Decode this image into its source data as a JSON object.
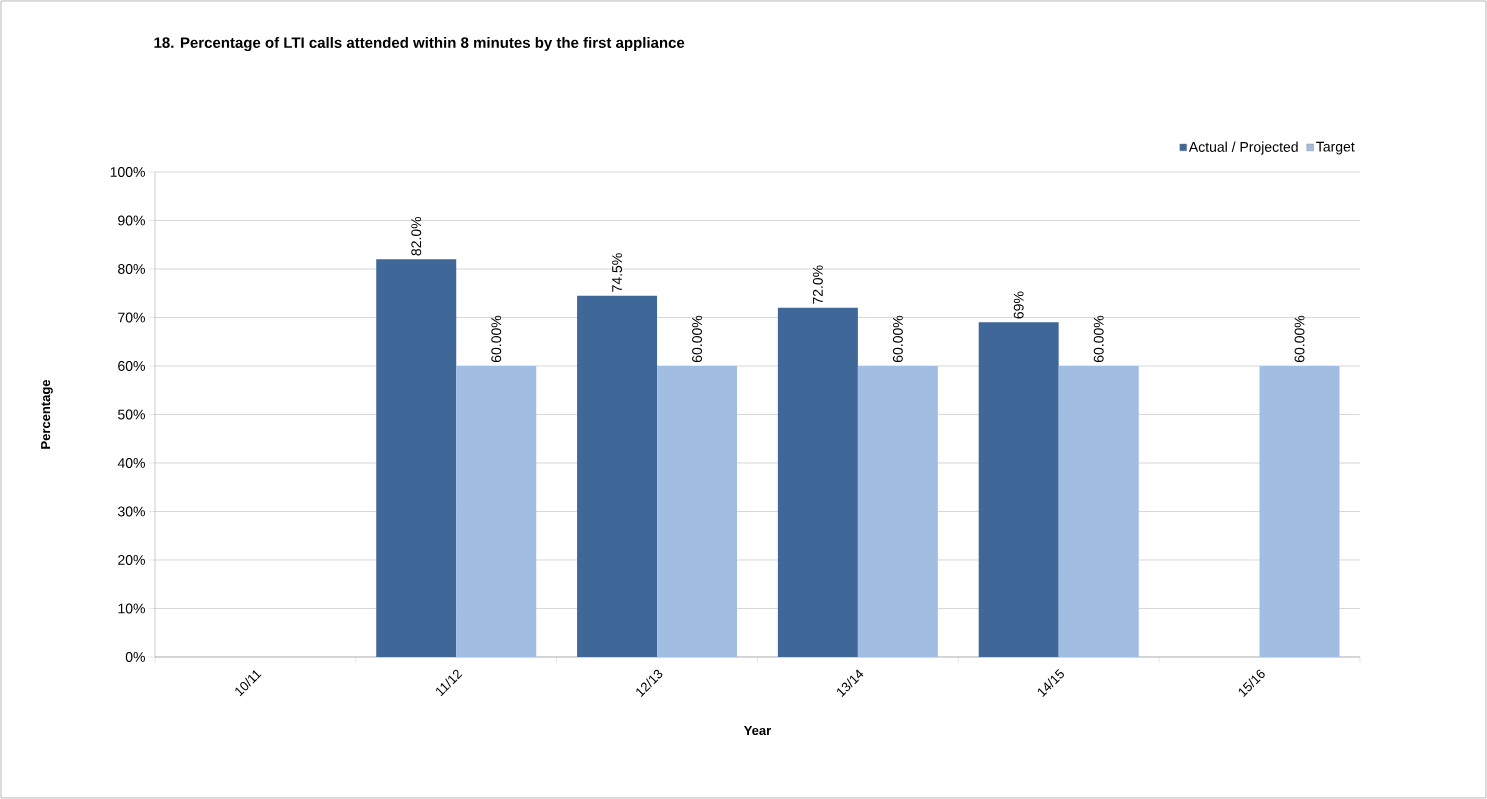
{
  "chart_data": {
    "type": "bar",
    "title": "18.  Percentage of LTI calls attended within 8 minutes by the first appliance",
    "xlabel": "Year",
    "ylabel": "Percentage",
    "categories": [
      "10/11",
      "11/12",
      "12/13",
      "13/14",
      "14/15",
      "15/16"
    ],
    "series": [
      {
        "name": "Actual / Projected",
        "color": "#3f6797",
        "values": [
          null,
          82.0,
          74.5,
          72.0,
          69,
          null
        ],
        "value_labels": [
          null,
          "82.0%",
          "74.5%",
          "72.0%",
          "69%",
          null
        ]
      },
      {
        "name": "Target",
        "color": "#a1bde2",
        "values": [
          null,
          60,
          60,
          60,
          60,
          60
        ],
        "value_labels": [
          null,
          "60.00%",
          "60.00%",
          "60.00%",
          "60.00%",
          "60.00%"
        ]
      }
    ],
    "ylim": [
      0,
      100
    ],
    "yticks": [
      {
        "value": 0,
        "label": "0%"
      },
      {
        "value": 10,
        "label": "10%"
      },
      {
        "value": 20,
        "label": "20%"
      },
      {
        "value": 30,
        "label": "30%"
      },
      {
        "value": 40,
        "label": "40%"
      },
      {
        "value": 50,
        "label": "50%"
      },
      {
        "value": 60,
        "label": "60%"
      },
      {
        "value": 70,
        "label": "70%"
      },
      {
        "value": 80,
        "label": "80%"
      },
      {
        "value": 90,
        "label": "90%"
      },
      {
        "value": 100,
        "label": "100%"
      }
    ],
    "grid": "y",
    "legend": "top right"
  }
}
